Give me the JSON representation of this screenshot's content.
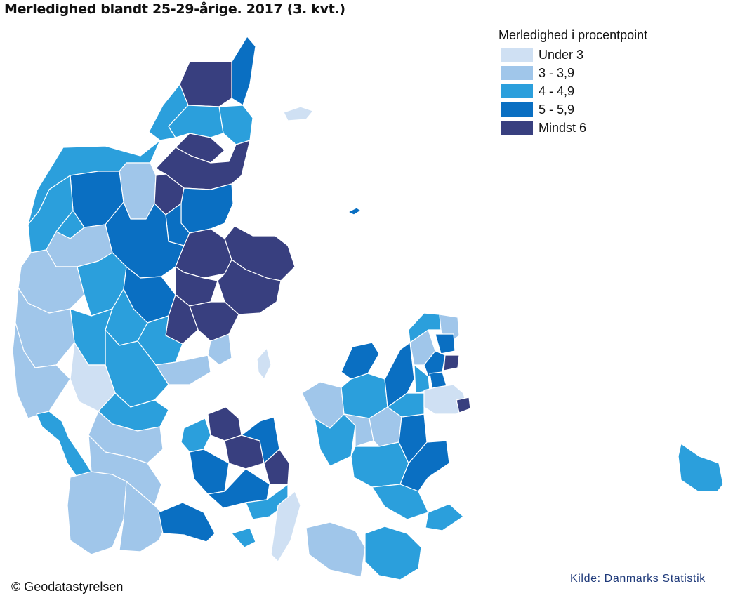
{
  "title": "Merledighed blandt 25-29-årige. 2017 (3. kvt.)",
  "legend": {
    "title": "Merledighed i procentpoint",
    "items": [
      {
        "label": "Under 3",
        "color": "#cfe0f3"
      },
      {
        "label": "3 - 3,9",
        "color": "#a0c6ea"
      },
      {
        "label": "4 - 4,9",
        "color": "#2b9fdc"
      },
      {
        "label": "5 - 5,9",
        "color": "#0a6fc2"
      },
      {
        "label": "Mindst 6",
        "color": "#383f7f"
      }
    ]
  },
  "copyright": "© Geodatastyrelsen",
  "source": "Kilde: Danmarks Statistik"
}
